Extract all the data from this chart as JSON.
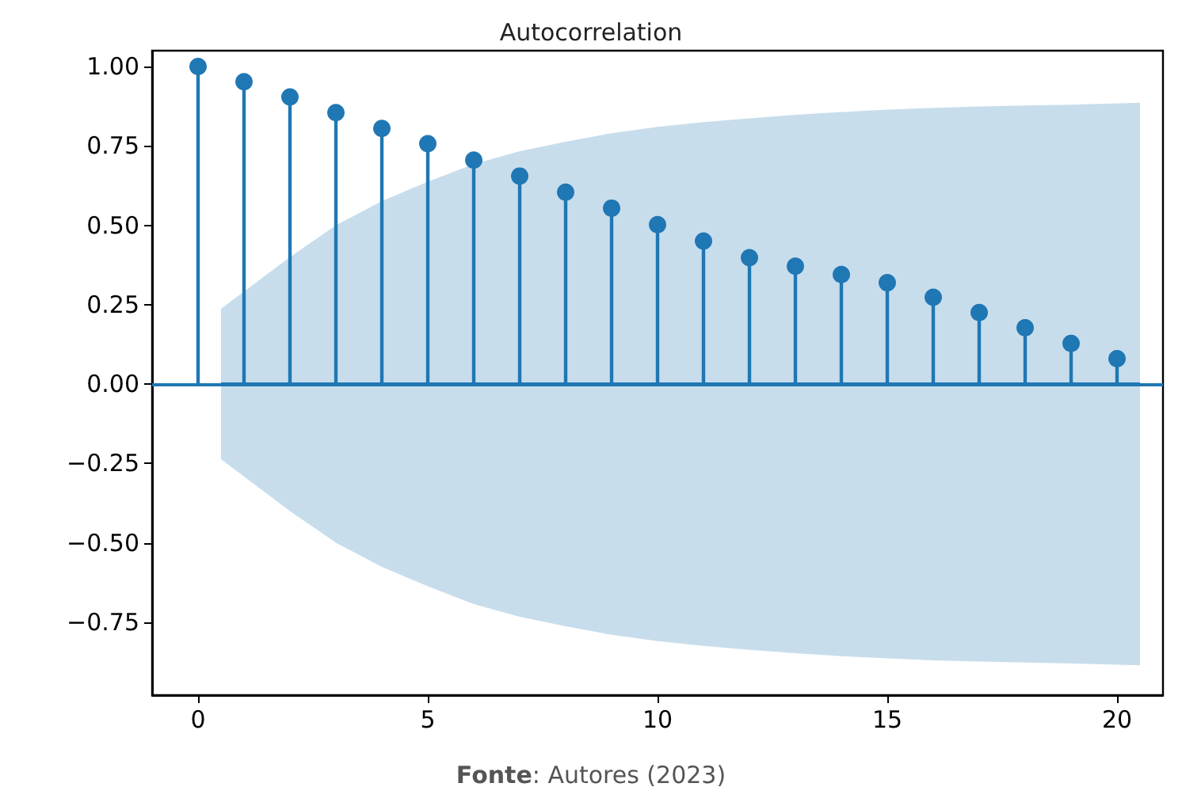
{
  "chart_data": {
    "type": "lollipop",
    "title": "Autocorrelation",
    "annotations": [
      "Fonte: Autores (2023)"
    ],
    "xlim": [
      -1,
      21
    ],
    "xticks": [
      0,
      5,
      10,
      15,
      20
    ],
    "ylim": [
      -0.98,
      1.05
    ],
    "yticks": [
      {
        "value": -0.75,
        "label": "−0.75"
      },
      {
        "value": -0.5,
        "label": "−0.50"
      },
      {
        "value": -0.25,
        "label": "−0.25"
      },
      {
        "value": 0,
        "label": "0.00"
      },
      {
        "value": 0.25,
        "label": "0.25"
      },
      {
        "value": 0.5,
        "label": "0.50"
      },
      {
        "value": 0.75,
        "label": "0.75"
      },
      {
        "value": 1,
        "label": "1.00"
      }
    ],
    "grid": false,
    "ref_lines": [
      {
        "axis": "y",
        "value": 0,
        "color": "#1f77b4"
      }
    ],
    "series": [
      {
        "type": "lollipop",
        "color": "#1f77b4",
        "marker": "circle",
        "x": [
          0,
          1,
          2,
          3,
          4,
          5,
          6,
          7,
          8,
          9,
          10,
          11,
          12,
          13,
          14,
          15,
          16,
          17,
          18,
          19,
          20
        ],
        "values": [
          1.0,
          0.952,
          0.904,
          0.855,
          0.805,
          0.757,
          0.705,
          0.655,
          0.604,
          0.554,
          0.502,
          0.45,
          0.398,
          0.371,
          0.345,
          0.319,
          0.273,
          0.225,
          0.177,
          0.128,
          0.08
        ]
      },
      {
        "type": "line",
        "color": "#1f77b4",
        "marker": "none",
        "x": [
          0.5,
          2,
          3,
          4,
          5,
          6,
          7,
          8,
          9,
          10,
          11,
          12,
          13,
          14,
          15,
          16,
          17,
          18,
          19,
          20.5
        ],
        "values": [
          0,
          0,
          0,
          0,
          0,
          0,
          0,
          0,
          0,
          0,
          0,
          0,
          0,
          0,
          0,
          0,
          0,
          0,
          0,
          0
        ],
        "lower": [
          -0.237,
          -0.4,
          -0.5,
          -0.576,
          -0.637,
          -0.693,
          -0.733,
          -0.763,
          -0.79,
          -0.81,
          -0.825,
          -0.837,
          -0.848,
          -0.857,
          -0.864,
          -0.87,
          -0.874,
          -0.877,
          -0.88,
          -0.886
        ],
        "upper": [
          0.237,
          0.4,
          0.5,
          0.576,
          0.637,
          0.693,
          0.733,
          0.763,
          0.79,
          0.81,
          0.825,
          0.837,
          0.848,
          0.857,
          0.864,
          0.87,
          0.874,
          0.877,
          0.88,
          0.886
        ]
      }
    ]
  }
}
